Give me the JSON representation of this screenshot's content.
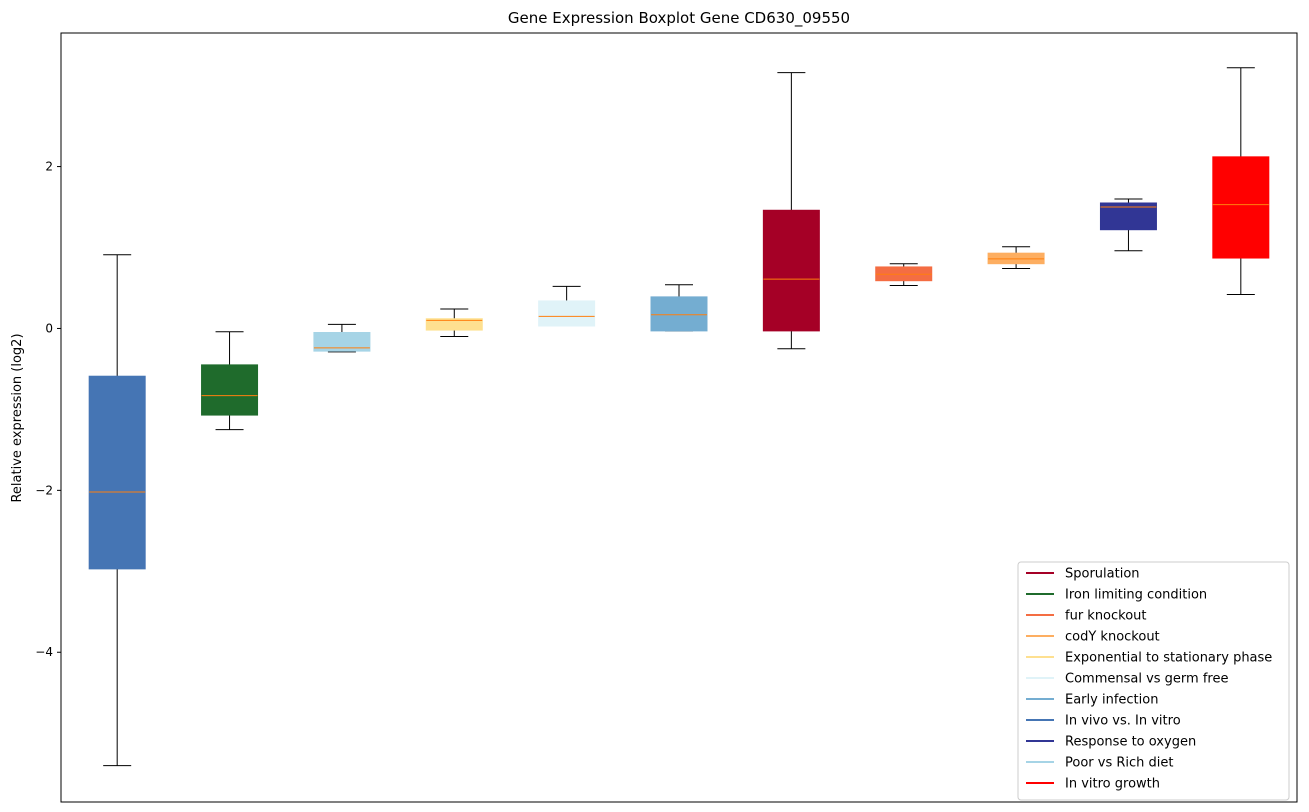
{
  "chart_data": {
    "type": "box",
    "title": "Gene Expression Boxplot Gene CD630_09550",
    "xlabel": "",
    "ylabel": "Relative expression (log2)",
    "ylim": [
      -5.85,
      3.65
    ],
    "yticks": [
      -4,
      -2,
      0,
      2
    ],
    "ytick_labels": [
      "−4",
      "−2",
      "0",
      "2"
    ],
    "x_ticks_shown": false,
    "grid": false,
    "legend_position": "lower right",
    "median_color": "#ff7f0e",
    "boxes": [
      {
        "color": "#4575b4",
        "whisker_low": -5.4,
        "q1": -2.97,
        "median": -2.02,
        "q3": -0.59,
        "whisker_high": 0.91
      },
      {
        "color": "#1f6b2c",
        "whisker_low": -1.25,
        "q1": -1.07,
        "median": -0.83,
        "q3": -0.45,
        "whisker_high": -0.04
      },
      {
        "color": "#a6d4e6",
        "whisker_low": -0.29,
        "q1": -0.28,
        "median": -0.24,
        "q3": -0.05,
        "whisker_high": 0.05
      },
      {
        "color": "#fee090",
        "whisker_low": -0.1,
        "q1": -0.02,
        "median": 0.1,
        "q3": 0.12,
        "whisker_high": 0.24
      },
      {
        "color": "#e0f3f8",
        "whisker_low": 0.03,
        "q1": 0.03,
        "median": 0.15,
        "q3": 0.34,
        "whisker_high": 0.52
      },
      {
        "color": "#74add1",
        "whisker_low": -0.03,
        "q1": -0.03,
        "median": 0.17,
        "q3": 0.39,
        "whisker_high": 0.54
      },
      {
        "color": "#a50026",
        "whisker_low": -0.25,
        "q1": -0.03,
        "median": 0.61,
        "q3": 1.46,
        "whisker_high": 3.16
      },
      {
        "color": "#f46d43",
        "whisker_low": 0.53,
        "q1": 0.59,
        "median": 0.67,
        "q3": 0.76,
        "whisker_high": 0.8
      },
      {
        "color": "#fdae61",
        "whisker_low": 0.74,
        "q1": 0.8,
        "median": 0.86,
        "q3": 0.93,
        "whisker_high": 1.01
      },
      {
        "color": "#313695",
        "whisker_low": 0.96,
        "q1": 1.22,
        "median": 1.5,
        "q3": 1.55,
        "whisker_high": 1.6
      },
      {
        "color": "#ff0000",
        "whisker_low": 0.42,
        "q1": 0.87,
        "median": 1.53,
        "q3": 2.12,
        "whisker_high": 3.22
      }
    ],
    "legend": [
      {
        "label": "Sporulation",
        "color": "#a50026"
      },
      {
        "label": "Iron limiting condition",
        "color": "#1f6b2c"
      },
      {
        "label": "fur knockout",
        "color": "#f46d43"
      },
      {
        "label": "codY knockout",
        "color": "#fdae61"
      },
      {
        "label": "Exponential to stationary phase",
        "color": "#fee090"
      },
      {
        "label": "Commensal vs germ free",
        "color": "#e0f3f8"
      },
      {
        "label": "Early infection",
        "color": "#74add1"
      },
      {
        "label": "In vivo vs. In vitro",
        "color": "#4575b4"
      },
      {
        "label": "Response to oxygen",
        "color": "#313695"
      },
      {
        "label": "Poor vs Rich diet",
        "color": "#a6d4e6"
      },
      {
        "label": "In vitro growth",
        "color": "#ff0000"
      }
    ]
  }
}
